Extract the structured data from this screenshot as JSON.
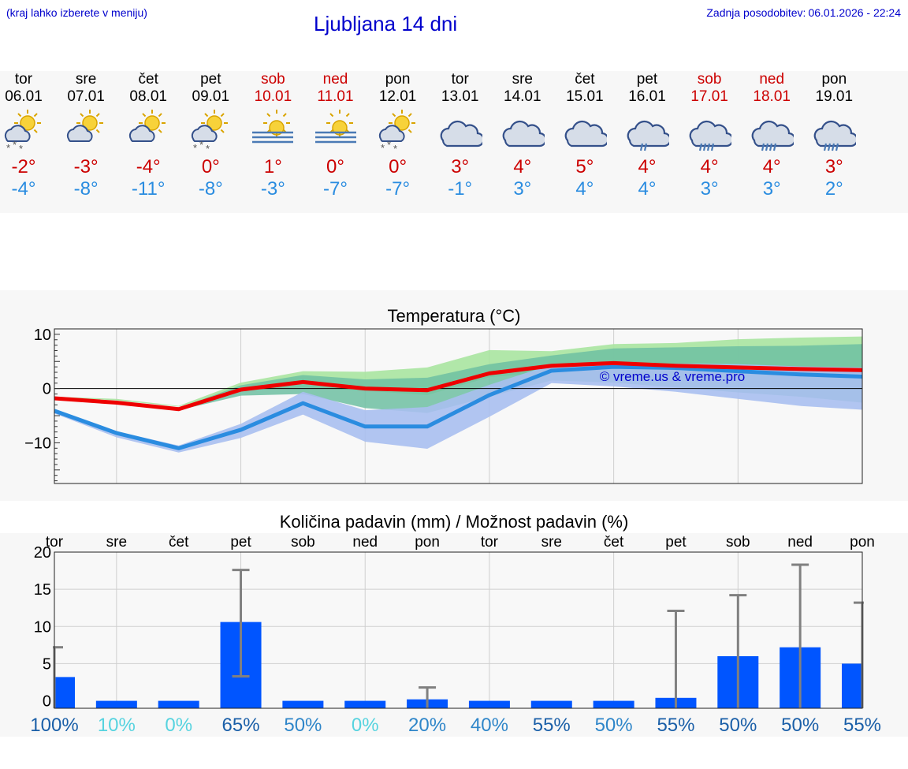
{
  "header": {
    "city_hint": "(kraj lahko izberete v meniju)",
    "title": "Ljubljana 14 dni",
    "updated_label": "Zadnja posodobitev:",
    "updated_value": "06.01.2026 - 22:24"
  },
  "colors": {
    "link_blue": "#0000cc",
    "weekend_red": "#cc0000",
    "max_temp": "#ee0000",
    "min_temp": "#2a8ce0",
    "precip_bar": "#0055ff"
  },
  "days": [
    {
      "name": "tor",
      "date": "06.01",
      "weekend": false,
      "icon": "partly-sunny-snow-icon",
      "tmax": "-2°",
      "tmin": "-4°"
    },
    {
      "name": "sre",
      "date": "07.01",
      "weekend": false,
      "icon": "partly-sunny-icon",
      "tmax": "-3°",
      "tmin": "-8°"
    },
    {
      "name": "čet",
      "date": "08.01",
      "weekend": false,
      "icon": "partly-sunny-icon",
      "tmax": "-4°",
      "tmin": "-11°"
    },
    {
      "name": "pet",
      "date": "09.01",
      "weekend": false,
      "icon": "partly-sunny-snow-icon",
      "tmax": "0°",
      "tmin": "-8°"
    },
    {
      "name": "sob",
      "date": "10.01",
      "weekend": true,
      "icon": "sun-fog-icon",
      "tmax": "1°",
      "tmin": "-3°"
    },
    {
      "name": "ned",
      "date": "11.01",
      "weekend": true,
      "icon": "sun-fog-icon",
      "tmax": "0°",
      "tmin": "-7°"
    },
    {
      "name": "pon",
      "date": "12.01",
      "weekend": false,
      "icon": "partly-sunny-snow-icon",
      "tmax": "0°",
      "tmin": "-7°"
    },
    {
      "name": "tor",
      "date": "13.01",
      "weekend": false,
      "icon": "cloud-icon",
      "tmax": "3°",
      "tmin": "-1°"
    },
    {
      "name": "sre",
      "date": "14.01",
      "weekend": false,
      "icon": "cloud-icon",
      "tmax": "4°",
      "tmin": "3°"
    },
    {
      "name": "čet",
      "date": "15.01",
      "weekend": false,
      "icon": "cloud-icon",
      "tmax": "5°",
      "tmin": "4°"
    },
    {
      "name": "pet",
      "date": "16.01",
      "weekend": false,
      "icon": "cloud-light-rain-icon",
      "tmax": "4°",
      "tmin": "4°"
    },
    {
      "name": "sob",
      "date": "17.01",
      "weekend": true,
      "icon": "cloud-rain-icon",
      "tmax": "4°",
      "tmin": "3°"
    },
    {
      "name": "ned",
      "date": "18.01",
      "weekend": true,
      "icon": "cloud-rain-icon",
      "tmax": "4°",
      "tmin": "3°"
    },
    {
      "name": "pon",
      "date": "19.01",
      "weekend": false,
      "icon": "cloud-rain-icon",
      "tmax": "3°",
      "tmin": "2°"
    }
  ],
  "chart_data": [
    {
      "type": "line",
      "title": "Temperatura (°C)",
      "watermark": "© vreme.us & vreme.pro",
      "ylim": [
        -17.5,
        11
      ],
      "yticks": [
        "10",
        "0",
        "−10"
      ],
      "ytick_values": [
        10,
        0,
        -10
      ],
      "x": [
        0,
        1,
        2,
        3,
        4,
        5,
        6,
        7,
        8,
        9,
        10,
        11,
        12,
        13
      ],
      "series": [
        {
          "name": "max",
          "values": [
            -1.8,
            -2.6,
            -3.8,
            -0.2,
            1.2,
            0.0,
            -0.3,
            2.8,
            4.2,
            4.7,
            4.2,
            3.9,
            3.6,
            3.4
          ]
        },
        {
          "name": "min",
          "values": [
            -4.1,
            -8.2,
            -11.0,
            -7.6,
            -2.7,
            -7.0,
            -7.0,
            -1.2,
            3.3,
            4.0,
            3.8,
            3.2,
            2.6,
            2.2
          ]
        }
      ],
      "bands": [
        {
          "name": "max-range",
          "low": [
            -1.5,
            -2.2,
            -3.3,
            -0.4,
            0.2,
            -0.4,
            -1.2,
            2.1,
            3.0,
            3.6,
            3.6,
            3.6,
            3.6,
            3.6
          ],
          "high": [
            -1.5,
            -1.9,
            -3.2,
            1.1,
            3.2,
            3.1,
            3.9,
            7.1,
            6.9,
            8.2,
            8.4,
            9.1,
            9.4,
            9.6
          ]
        },
        {
          "name": "spread",
          "low": [
            -1.9,
            -2.9,
            -4.0,
            -1.3,
            -1.0,
            -3.6,
            -4.5,
            -1.5,
            1.5,
            1.1,
            0.2,
            -0.7,
            -1.5,
            -2.6
          ],
          "high": [
            -1.9,
            -2.5,
            -3.6,
            0.6,
            2.5,
            1.7,
            2.0,
            4.5,
            6.1,
            7.4,
            7.6,
            7.8,
            7.9,
            8.2
          ]
        },
        {
          "name": "min-range",
          "low": [
            -4.6,
            -9.0,
            -11.8,
            -9.1,
            -4.8,
            -9.8,
            -11.1,
            -5.2,
            1.0,
            0.4,
            -0.6,
            -1.9,
            -3.2,
            -3.9
          ],
          "high": [
            -4.0,
            -7.9,
            -10.5,
            -6.5,
            -0.6,
            -4.0,
            -3.4,
            0.7,
            4.4,
            4.5,
            4.6,
            4.5,
            4.1,
            3.9
          ]
        }
      ]
    },
    {
      "type": "bar",
      "title": "Količina padavin (mm) / Možnost padavin (%)",
      "ylim": [
        -1,
        20
      ],
      "yticks": [
        "20",
        "15",
        "10",
        "5",
        "0"
      ],
      "ytick_values": [
        20,
        15,
        10,
        5,
        0
      ],
      "categories": [
        "tor",
        "sre",
        "čet",
        "pet",
        "sob",
        "ned",
        "pon",
        "tor",
        "sre",
        "čet",
        "pet",
        "sob",
        "ned",
        "pon"
      ],
      "values": [
        3.2,
        0,
        0,
        10.6,
        0,
        0,
        0.2,
        0,
        0,
        0,
        0.4,
        6.0,
        7.2,
        5.0
      ],
      "error_low": [
        null,
        null,
        null,
        3.3,
        null,
        null,
        null,
        null,
        null,
        null,
        null,
        null,
        null,
        null
      ],
      "error_high": [
        7.2,
        null,
        null,
        17.6,
        null,
        null,
        1.8,
        null,
        null,
        null,
        12.1,
        14.2,
        18.3,
        13.2
      ],
      "probability": [
        "100%",
        "10%",
        "0%",
        "65%",
        "50%",
        "0%",
        "20%",
        "40%",
        "55%",
        "50%",
        "55%",
        "50%",
        "50%",
        "55%"
      ],
      "probability_colors": [
        "#1a5fa8",
        "#56d3df",
        "#56d3df",
        "#1a5fa8",
        "#2f86c9",
        "#56d3df",
        "#2f86c9",
        "#2f86c9",
        "#1a5fa8",
        "#2f86c9",
        "#1a5fa8",
        "#1a5fa8",
        "#1a5fa8",
        "#1a5fa8"
      ]
    }
  ]
}
